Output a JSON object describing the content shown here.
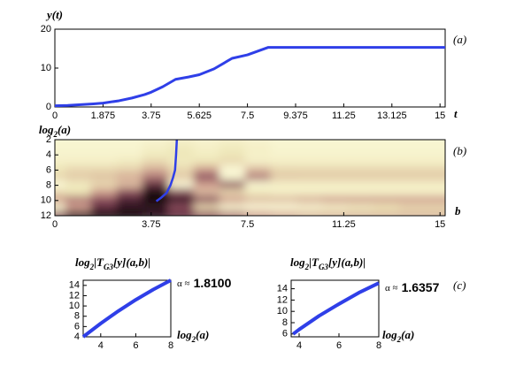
{
  "chart_data": [
    {
      "type": "line",
      "ylabel": [
        "y(t)"
      ],
      "xlabel": [
        "t"
      ],
      "panel_label": "(a)",
      "x": [
        0,
        0.5,
        1,
        1.5,
        1.875,
        2.5,
        3,
        3.5,
        3.75,
        4.2,
        4.7,
        5.2,
        5.625,
        6.2,
        6.9,
        7.5,
        8.3,
        9.375,
        11.25,
        13.125,
        15.2
      ],
      "series": [
        {
          "name": "y(t)",
          "color": "#2f3fe8",
          "values": [
            0.3,
            0.4,
            0.6,
            0.8,
            1.0,
            1.6,
            2.3,
            3.2,
            3.8,
            5.2,
            7.1,
            7.7,
            8.3,
            9.8,
            12.5,
            13.4,
            15.3,
            15.3,
            15.3,
            15.3,
            15.3
          ]
        }
      ],
      "xlim": [
        0,
        15.2
      ],
      "xticks": [
        0,
        1.875,
        3.75,
        5.625,
        7.5,
        9.375,
        11.25,
        13.125,
        15
      ],
      "ylim": [
        0,
        20
      ],
      "yticks": [
        0,
        10,
        20
      ],
      "grid": false
    },
    {
      "type": "heatmap",
      "ylabel": [
        "log",
        "2",
        "(a)"
      ],
      "xlabel": [
        "b"
      ],
      "panel_label": "(b)",
      "x": [
        0,
        1,
        2,
        3,
        4,
        5,
        6,
        7,
        8,
        9,
        10,
        11,
        12,
        13,
        14,
        15
      ],
      "y": [
        2,
        3,
        4,
        5,
        6,
        7,
        8,
        9,
        10,
        11,
        12
      ],
      "z": [
        [
          0.9,
          0.9,
          0.9,
          0.9,
          0.88,
          0.85,
          0.88,
          0.85,
          0.88,
          0.9,
          0.9,
          0.9,
          0.9,
          0.9,
          0.9,
          0.9
        ],
        [
          0.9,
          0.9,
          0.9,
          0.9,
          0.85,
          0.8,
          0.85,
          0.8,
          0.85,
          0.9,
          0.9,
          0.9,
          0.9,
          0.9,
          0.9,
          0.9
        ],
        [
          0.88,
          0.88,
          0.88,
          0.88,
          0.8,
          0.75,
          0.82,
          0.75,
          0.85,
          0.88,
          0.88,
          0.88,
          0.88,
          0.88,
          0.88,
          0.88
        ],
        [
          0.85,
          0.85,
          0.85,
          0.8,
          0.7,
          0.8,
          0.75,
          0.7,
          0.85,
          0.85,
          0.85,
          0.85,
          0.85,
          0.85,
          0.85,
          0.85
        ],
        [
          0.75,
          0.7,
          0.7,
          0.68,
          0.55,
          0.7,
          0.5,
          0.95,
          0.6,
          0.7,
          0.7,
          0.7,
          0.7,
          0.7,
          0.7,
          0.7
        ],
        [
          0.7,
          0.65,
          0.62,
          0.55,
          0.4,
          0.65,
          0.3,
          0.9,
          0.4,
          0.65,
          0.65,
          0.65,
          0.65,
          0.65,
          0.65,
          0.65
        ],
        [
          0.95,
          0.8,
          0.7,
          0.6,
          0.2,
          0.95,
          0.5,
          0.3,
          0.9,
          0.85,
          0.85,
          0.85,
          0.85,
          0.85,
          0.85,
          0.85
        ],
        [
          0.7,
          0.75,
          0.5,
          0.3,
          0.05,
          0.3,
          0.6,
          0.7,
          0.8,
          0.85,
          0.85,
          0.85,
          0.85,
          0.85,
          0.85,
          0.85
        ],
        [
          0.5,
          0.4,
          0.3,
          0.15,
          0.05,
          0.1,
          0.3,
          0.5,
          0.6,
          0.6,
          0.55,
          0.5,
          0.5,
          0.5,
          0.5,
          0.5
        ],
        [
          0.9,
          0.5,
          0.2,
          0.1,
          0.1,
          0.3,
          0.7,
          0.9,
          0.95,
          0.95,
          0.9,
          0.85,
          0.8,
          0.75,
          0.7,
          0.7
        ],
        [
          0.3,
          0.1,
          0.05,
          0.05,
          0.1,
          0.2,
          0.3,
          0.4,
          0.5,
          0.55,
          0.6,
          0.6,
          0.6,
          0.6,
          0.6,
          0.6
        ]
      ],
      "colormap": [
        "#000000",
        "#7a3a50",
        "#d0a090",
        "#eee6b8",
        "#ffffe0"
      ],
      "ridge": {
        "color": "#2f3fe8",
        "x": [
          4.75,
          4.72,
          4.68,
          4.6,
          4.5,
          4.35,
          4.15,
          3.95
        ],
        "values": [
          2,
          4,
          6,
          7,
          8,
          9,
          9.6,
          10.1
        ]
      },
      "xlim": [
        0,
        15.2
      ],
      "xticks": [
        0,
        3.75,
        7.5,
        11.25,
        15
      ],
      "ylim": [
        12,
        2
      ],
      "yticks": [
        2,
        4,
        6,
        8,
        10,
        12
      ]
    },
    {
      "type": "line",
      "title": [
        "log",
        "2",
        "|T",
        "G3",
        "[y](a,b)|"
      ],
      "xlabel": [
        "log",
        "2",
        "(a)"
      ],
      "panel_label": "(c)",
      "annotation": {
        "symbol": "α ≈",
        "value": "1.8100"
      },
      "x": [
        3,
        4,
        5,
        6,
        7,
        8
      ],
      "series": [
        {
          "name": "fit",
          "color": "#2f3fe8",
          "values": [
            4,
            6.6,
            9,
            11.2,
            13.2,
            15
          ]
        }
      ],
      "xlim": [
        3,
        8
      ],
      "xticks": [
        4,
        6,
        8
      ],
      "ylim": [
        4,
        15
      ],
      "yticks": [
        4,
        6,
        8,
        10,
        12,
        14
      ]
    },
    {
      "type": "line",
      "title": [
        "log",
        "2",
        "|T",
        "G3",
        "[y](a,b)|"
      ],
      "xlabel": [
        "log",
        "2",
        "(a)"
      ],
      "annotation": {
        "symbol": "α ≈",
        "value": "1.6357"
      },
      "x": [
        3.7,
        4,
        5,
        6,
        7,
        8
      ],
      "series": [
        {
          "name": "fit",
          "color": "#2f3fe8",
          "values": [
            6,
            6.8,
            9.2,
            11.3,
            13.3,
            15
          ]
        }
      ],
      "xlim": [
        3.6,
        8
      ],
      "xticks": [
        4,
        6,
        8
      ],
      "ylim": [
        5.5,
        15.5
      ],
      "yticks": [
        6,
        8,
        10,
        12,
        14
      ]
    }
  ]
}
